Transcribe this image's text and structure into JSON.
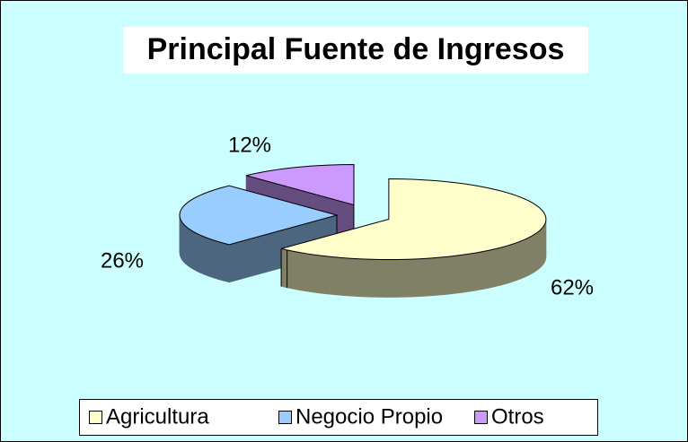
{
  "chart_data": {
    "type": "pie",
    "title": "Principal Fuente de Ingresos",
    "categories": [
      "Agricultura",
      "Negocio Propio",
      "Otros"
    ],
    "values": [
      62,
      26,
      12
    ],
    "value_labels": [
      "62%",
      "26%",
      "12%"
    ],
    "colors": [
      "#ffffcc",
      "#99ccff",
      "#cc99ff"
    ],
    "legend": "bottom"
  }
}
